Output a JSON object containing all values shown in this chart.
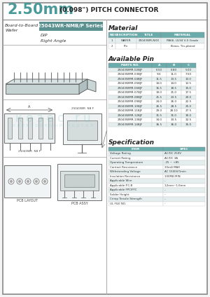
{
  "title_large": "2.50mm",
  "title_small": " (0.098\") PITCH CONNECTOR",
  "title_color": "#4a9a9a",
  "bg_color": "#f5f5f5",
  "panel_bg": "#ffffff",
  "border_color": "#999999",
  "section_bg": "#5a9090",
  "series_label": "25043WR-NMB/P Series",
  "type1": "DIP",
  "type2": "Right Angle",
  "board_label": "Board-to-Board",
  "wafer_label": "Wafer",
  "material_title": "Material",
  "material_headers": [
    "NO",
    "DESCRIPTION",
    "TITLE",
    "MATERIAL"
  ],
  "material_rows": [
    [
      "1",
      "WAFER",
      "25043WR-NXX",
      "PA66, UL94 V-0 Grade"
    ],
    [
      "2",
      "Pin",
      "",
      "Brass, Tin-plated"
    ]
  ],
  "avail_title": "Available Pin",
  "avail_headers": [
    "PARTS NO.",
    "A",
    "B",
    "C"
  ],
  "avail_rows": [
    [
      "25043WMR-02BJF",
      "6.50",
      "6.80",
      "5.00"
    ],
    [
      "25043WMR-03BJF",
      "9.0",
      "11.0",
      "7.50"
    ],
    [
      "25043WMR-04BJF",
      "11.5",
      "13.5",
      "10.0"
    ],
    [
      "25043WMR-05BJF",
      "14.0",
      "14.0",
      "12.5"
    ],
    [
      "25043WMR-06BJF",
      "16.5",
      "18.5",
      "15.0"
    ],
    [
      "25043WMR-07BJF",
      "19.0",
      "21.0",
      "17.5"
    ],
    [
      "25043WMR-08BJF",
      "21.5",
      "23.5",
      "20.0"
    ],
    [
      "25043WMR-09BJF",
      "24.0",
      "26.0",
      "22.5"
    ],
    [
      "25043WMR-10BJF",
      "26.5",
      "28.5",
      "25.0"
    ],
    [
      "25043WMR-11BJF",
      "29.0",
      "28.10",
      "27.5"
    ],
    [
      "25043WMR-12BJF",
      "31.5",
      "31.0",
      "30.0"
    ],
    [
      "25043WMR-13BJF",
      "34.0",
      "33.5",
      "32.5"
    ],
    [
      "25043WMR-14BJF",
      "36.5",
      "36.0",
      "35.0"
    ]
  ],
  "spec_title": "Specification",
  "spec_headers": [
    "ITEM",
    "SPEC"
  ],
  "spec_rows": [
    [
      "Voltage Rating",
      "AC/DC 250V"
    ],
    [
      "Current Rating",
      "AC/DC 3A"
    ],
    [
      "Operating Temperature",
      "-25 ~ +85"
    ],
    [
      "Contact Resistance",
      "30mΩ MAX"
    ],
    [
      "Withstanding Voltage",
      "AC 1500V/1min"
    ],
    [
      "Insulation Resistance",
      "100MΩ MIN"
    ],
    [
      "Applicable Wire",
      "-"
    ],
    [
      "Applicable P.C.B",
      "1.2mm~1.6mm"
    ],
    [
      "Applicable FPC/FFC",
      "-"
    ],
    [
      "Solder Height",
      "-"
    ],
    [
      "Crimp Tensile Strength",
      "-"
    ],
    [
      "UL FILE NO.",
      "-"
    ]
  ],
  "table_header_color": "#6aacac",
  "table_row_alt": "#e5eeee",
  "table_row_normal": "#ffffff",
  "outer_border": "#888888",
  "divider_color": "#aaaaaa"
}
